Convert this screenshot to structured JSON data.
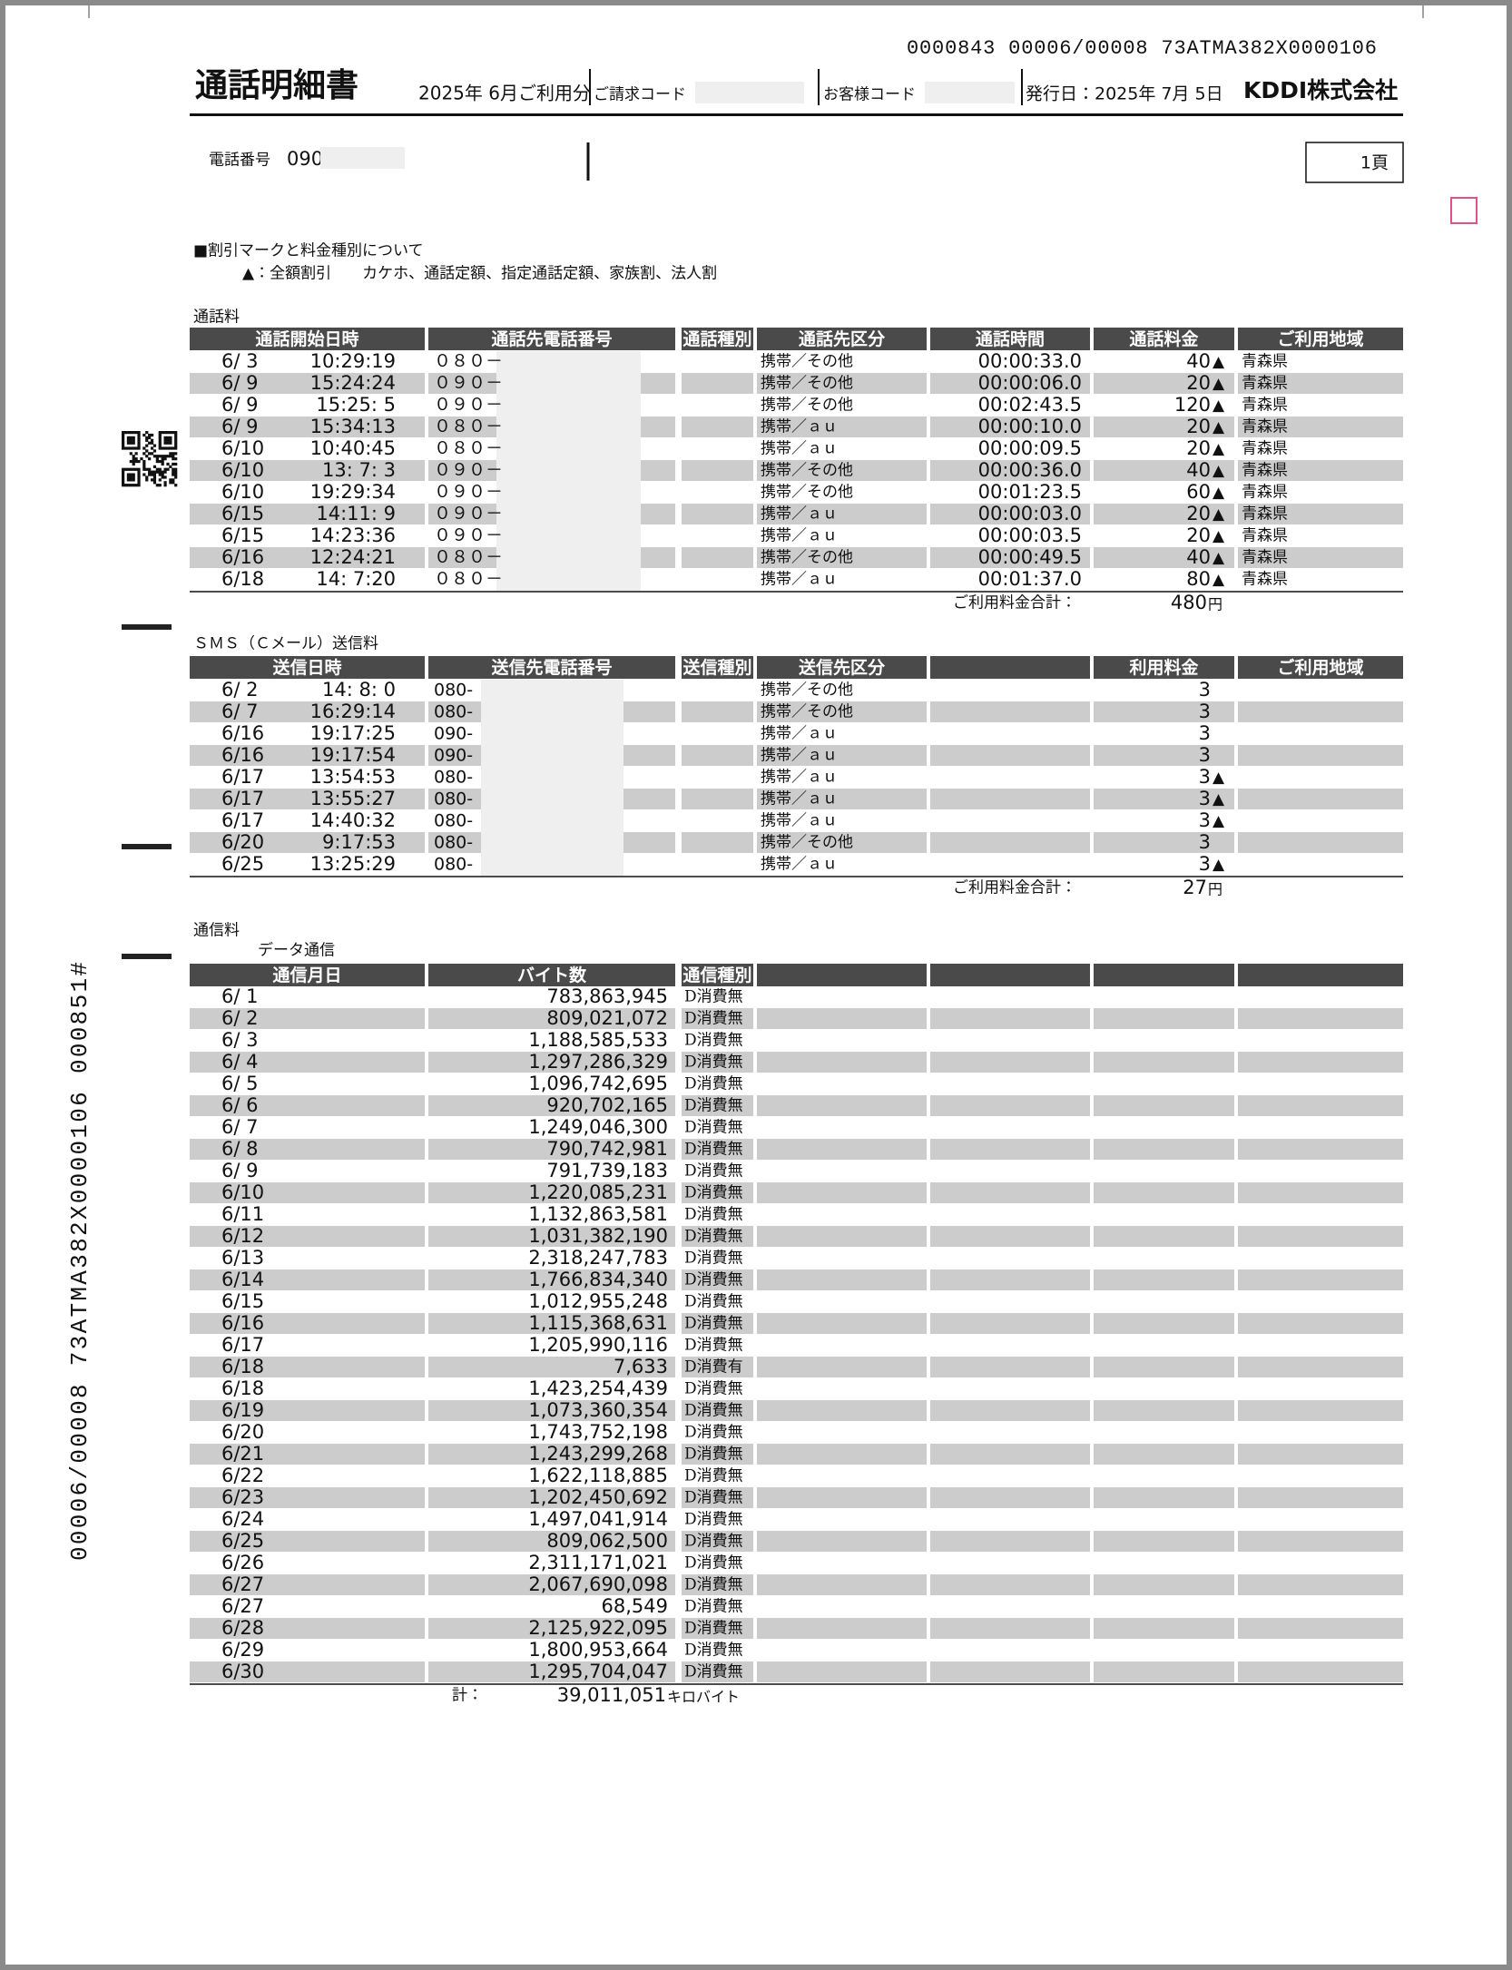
{
  "header": {
    "doc_code": "0000843 00006/00008 73ATMA382X0000106",
    "title": "通話明細書",
    "usage": "2025年 6月ご利用分",
    "billing_code_label": "ご請求コード",
    "customer_code_label": "お客様コード",
    "issue_date": "発行日：2025年 7月 5日",
    "company": "KDDI株式会社",
    "phone_label": "電話番号",
    "phone": "090",
    "page": "1頁"
  },
  "legend": {
    "title": "■割引マークと料金種別について",
    "line": "▲：全額割引　　カケホ、通話定額、指定通話定額、家族割、法人割"
  },
  "side_code": "00006/00008 73ATMA382X0000106 000851#",
  "calls": {
    "title": "通話料",
    "headers": [
      "通話開始日時",
      "通話先電話番号",
      "通話種別",
      "通話先区分",
      "通話時間",
      "通話料金",
      "ご利用地域"
    ],
    "rows": [
      {
        "date": "6/ 3",
        "time": "10:29:19",
        "number": "０８０－",
        "category": "携帯／その他",
        "duration": "00:00:33.0",
        "fee": "40",
        "mark": "▲",
        "region": "青森県"
      },
      {
        "date": "6/ 9",
        "time": "15:24:24",
        "number": "０９０－",
        "category": "携帯／その他",
        "duration": "00:00:06.0",
        "fee": "20",
        "mark": "▲",
        "region": "青森県"
      },
      {
        "date": "6/ 9",
        "time": "15:25: 5",
        "number": "０９０－",
        "category": "携帯／その他",
        "duration": "00:02:43.5",
        "fee": "120",
        "mark": "▲",
        "region": "青森県"
      },
      {
        "date": "6/ 9",
        "time": "15:34:13",
        "number": "０８０－",
        "category": "携帯／ａｕ",
        "duration": "00:00:10.0",
        "fee": "20",
        "mark": "▲",
        "region": "青森県"
      },
      {
        "date": "6/10",
        "time": "10:40:45",
        "number": "０８０－",
        "category": "携帯／ａｕ",
        "duration": "00:00:09.5",
        "fee": "20",
        "mark": "▲",
        "region": "青森県"
      },
      {
        "date": "6/10",
        "time": "13: 7: 3",
        "number": "０９０－",
        "category": "携帯／その他",
        "duration": "00:00:36.0",
        "fee": "40",
        "mark": "▲",
        "region": "青森県"
      },
      {
        "date": "6/10",
        "time": "19:29:34",
        "number": "０９０－",
        "category": "携帯／その他",
        "duration": "00:01:23.5",
        "fee": "60",
        "mark": "▲",
        "region": "青森県"
      },
      {
        "date": "6/15",
        "time": "14:11: 9",
        "number": "０９０－",
        "category": "携帯／ａｕ",
        "duration": "00:00:03.0",
        "fee": "20",
        "mark": "▲",
        "region": "青森県"
      },
      {
        "date": "6/15",
        "time": "14:23:36",
        "number": "０９０－",
        "category": "携帯／ａｕ",
        "duration": "00:00:03.5",
        "fee": "20",
        "mark": "▲",
        "region": "青森県"
      },
      {
        "date": "6/16",
        "time": "12:24:21",
        "number": "０８０－",
        "category": "携帯／その他",
        "duration": "00:00:49.5",
        "fee": "40",
        "mark": "▲",
        "region": "青森県"
      },
      {
        "date": "6/18",
        "time": "14: 7:20",
        "number": "０８０－",
        "category": "携帯／ａｕ",
        "duration": "00:01:37.0",
        "fee": "80",
        "mark": "▲",
        "region": "青森県"
      }
    ],
    "total_label": "ご利用料金合計：",
    "total": "480",
    "total_unit": "円"
  },
  "sms": {
    "title": "ＳＭＳ（Ｃメール）送信料",
    "headers": [
      "送信日時",
      "送信先電話番号",
      "送信種別",
      "送信先区分",
      "利用料金",
      "ご利用地域"
    ],
    "rows": [
      {
        "date": "6/ 2",
        "time": "14: 8: 0",
        "number": "080-",
        "category": "携帯／その他",
        "fee": "3"
      },
      {
        "date": "6/ 7",
        "time": "16:29:14",
        "number": "080-",
        "category": "携帯／その他",
        "fee": "3"
      },
      {
        "date": "6/16",
        "time": "19:17:25",
        "number": "090-",
        "category": "携帯／ａｕ",
        "fee": "3"
      },
      {
        "date": "6/16",
        "time": "19:17:54",
        "number": "090-",
        "category": "携帯／ａｕ",
        "fee": "3"
      },
      {
        "date": "6/17",
        "time": "13:54:53",
        "number": "080-",
        "category": "携帯／ａｕ",
        "fee": "3",
        "mark": "▲"
      },
      {
        "date": "6/17",
        "time": "13:55:27",
        "number": "080-",
        "category": "携帯／ａｕ",
        "fee": "3",
        "mark": "▲"
      },
      {
        "date": "6/17",
        "time": "14:40:32",
        "number": "080-",
        "category": "携帯／ａｕ",
        "fee": "3",
        "mark": "▲"
      },
      {
        "date": "6/20",
        "time": " 9:17:53",
        "number": "080-",
        "category": "携帯／その他",
        "fee": "3"
      },
      {
        "date": "6/25",
        "time": "13:25:29",
        "number": "080-",
        "category": "携帯／ａｕ",
        "fee": "3",
        "mark": "▲"
      }
    ],
    "total_label": "ご利用料金合計：",
    "total": "27",
    "total_unit": "円"
  },
  "data": {
    "title": "通信料",
    "subtitle": "データ通信",
    "headers": [
      "通信月日",
      "バイト数",
      "通信種別"
    ],
    "rows": [
      [
        "6/ 1",
        "783,863,945",
        "D消費無"
      ],
      [
        "6/ 2",
        "809,021,072",
        "D消費無"
      ],
      [
        "6/ 3",
        "1,188,585,533",
        "D消費無"
      ],
      [
        "6/ 4",
        "1,297,286,329",
        "D消費無"
      ],
      [
        "6/ 5",
        "1,096,742,695",
        "D消費無"
      ],
      [
        "6/ 6",
        "920,702,165",
        "D消費無"
      ],
      [
        "6/ 7",
        "1,249,046,300",
        "D消費無"
      ],
      [
        "6/ 8",
        "790,742,981",
        "D消費無"
      ],
      [
        "6/ 9",
        "791,739,183",
        "D消費無"
      ],
      [
        "6/10",
        "1,220,085,231",
        "D消費無"
      ],
      [
        "6/11",
        "1,132,863,581",
        "D消費無"
      ],
      [
        "6/12",
        "1,031,382,190",
        "D消費無"
      ],
      [
        "6/13",
        "2,318,247,783",
        "D消費無"
      ],
      [
        "6/14",
        "1,766,834,340",
        "D消費無"
      ],
      [
        "6/15",
        "1,012,955,248",
        "D消費無"
      ],
      [
        "6/16",
        "1,115,368,631",
        "D消費無"
      ],
      [
        "6/17",
        "1,205,990,116",
        "D消費無"
      ],
      [
        "6/18",
        "7,633",
        "D消費有"
      ],
      [
        "6/18",
        "1,423,254,439",
        "D消費無"
      ],
      [
        "6/19",
        "1,073,360,354",
        "D消費無"
      ],
      [
        "6/20",
        "1,743,752,198",
        "D消費無"
      ],
      [
        "6/21",
        "1,243,299,268",
        "D消費無"
      ],
      [
        "6/22",
        "1,622,118,885",
        "D消費無"
      ],
      [
        "6/23",
        "1,202,450,692",
        "D消費無"
      ],
      [
        "6/24",
        "1,497,041,914",
        "D消費無"
      ],
      [
        "6/25",
        "809,062,500",
        "D消費無"
      ],
      [
        "6/26",
        "2,311,171,021",
        "D消費無"
      ],
      [
        "6/27",
        "2,067,690,098",
        "D消費無"
      ],
      [
        "6/27",
        "68,549",
        "D消費無"
      ],
      [
        "6/28",
        "2,125,922,095",
        "D消費無"
      ],
      [
        "6/29",
        "1,800,953,664",
        "D消費無"
      ],
      [
        "6/30",
        "1,295,704,047",
        "D消費無"
      ]
    ],
    "total_label": "計：",
    "total": "39,011,051",
    "total_unit": "キロバイト"
  }
}
